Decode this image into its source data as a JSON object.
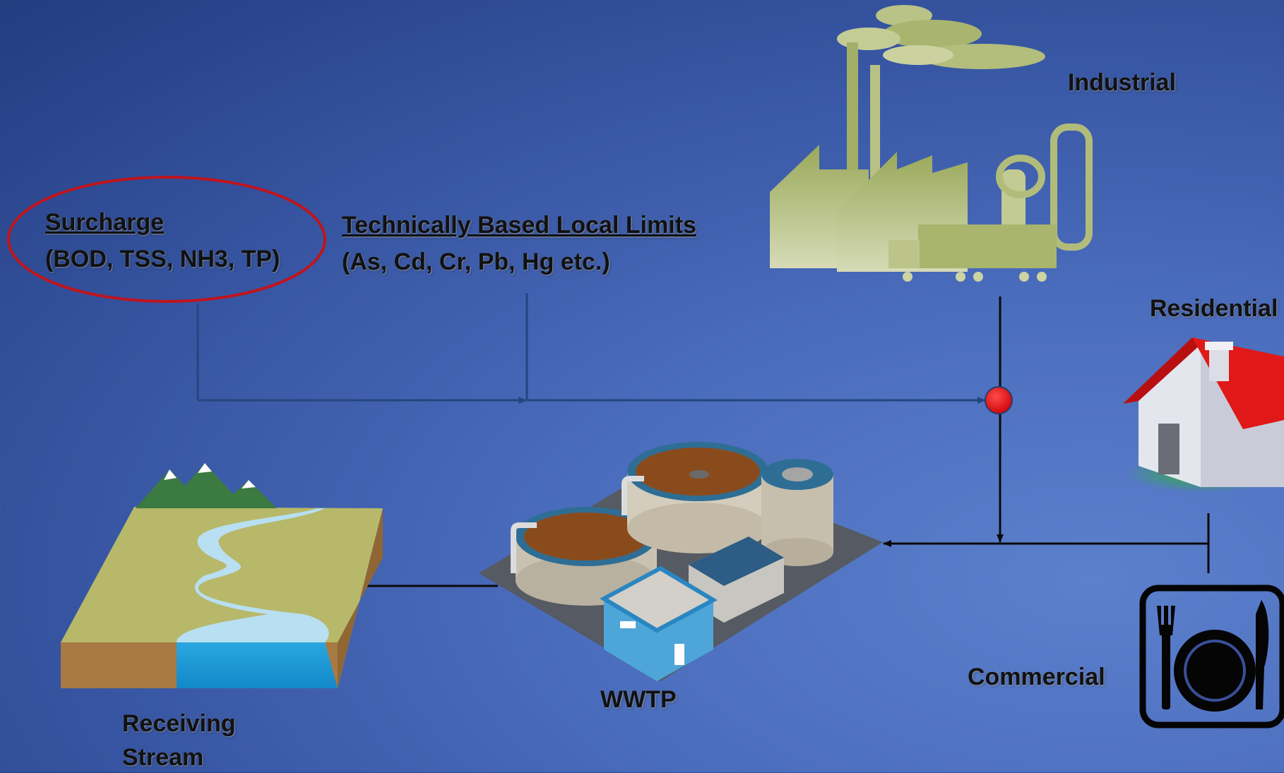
{
  "labels": {
    "surcharge_title": "Surcharge",
    "surcharge_params": "(BOD, TSS, NH3, TP)",
    "limits_title": "Technically Based Local Limits",
    "limits_params": "(As, Cd, Cr, Pb, Hg etc.)",
    "industrial": "Industrial",
    "residential": "Residential",
    "commercial": "Commercial",
    "wwtp": "WWTP",
    "receiving_stream_line1": "Receiving",
    "receiving_stream_line2": "Stream"
  },
  "colors": {
    "highlight_ellipse": "#c0141c",
    "junction_point": "#e8141a",
    "flow_line_dark": "#0a0a0a",
    "flow_line_muted": "#25457e",
    "house_roof": "#e01818"
  },
  "icons": [
    "factory-icon",
    "house-icon",
    "restaurant-icon",
    "treatment-plant-icon",
    "river-landscape-icon"
  ]
}
